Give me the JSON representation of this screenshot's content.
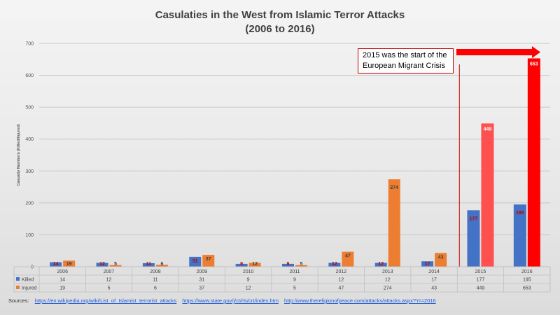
{
  "title": "Casulaties in the West from Islamic Terror Attacks",
  "subtitle": "(2006 to 2016)",
  "annotation": {
    "line1": "2015 was the start of the",
    "line2": "European Migrant Crisis"
  },
  "sources": {
    "label": "Sources:",
    "links": [
      "https://en.wikipedia.org/wiki/List_of_Islamist_terrorist_attacks",
      "https://www.state.gov/j/ct/rls/crt/index.htm",
      "http://www.thereligionofpeace.com/attacks/attacks.aspx?Yr=2016"
    ]
  },
  "colors": {
    "killed": "#4472c4",
    "injured": "#ed7d31",
    "highlight_killed": "#ff0000",
    "highlight_injured": "#ff5050",
    "label_dark": "#c00000"
  },
  "chart_data": {
    "type": "bar",
    "title": "Casulaties in the West from Islamic Terror Attacks (2006 to 2016)",
    "ylabel": "Casualty Numbers (Killed/Injured)",
    "xlabel": "",
    "ylim": [
      0,
      700
    ],
    "yticks": [
      0,
      100,
      200,
      300,
      400,
      500,
      600,
      700
    ],
    "grid": true,
    "categories": [
      "2006",
      "2007",
      "2008",
      "2009",
      "2010",
      "2011",
      "2012",
      "2013",
      "2014",
      "2015",
      "2016"
    ],
    "series": [
      {
        "name": "Killed",
        "values": [
          14,
          12,
          11,
          31,
          9,
          9,
          12,
          12,
          17,
          177,
          195
        ]
      },
      {
        "name": "Injured",
        "values": [
          19,
          5,
          6,
          37,
          12,
          5,
          47,
          274,
          43,
          449,
          653
        ]
      }
    ],
    "data_table": true
  }
}
